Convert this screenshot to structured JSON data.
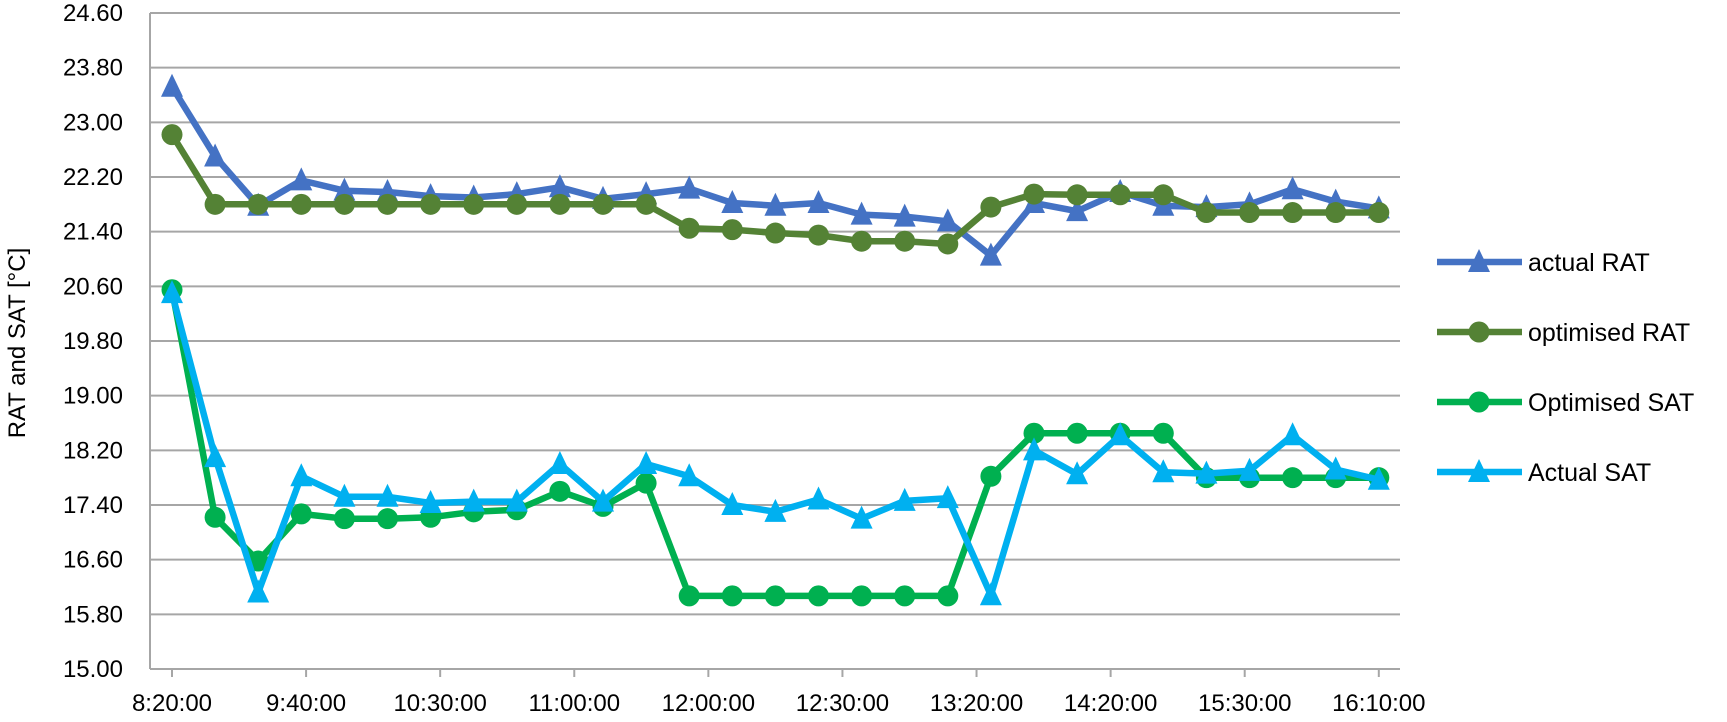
{
  "chart_data": {
    "type": "line",
    "ylabel": "RAT and SAT [°C]",
    "xlabel": "",
    "ylim": [
      15.0,
      24.6
    ],
    "ytick_step": 0.8,
    "yticks": [
      "15.00",
      "15.80",
      "16.60",
      "17.40",
      "18.20",
      "19.00",
      "19.80",
      "20.60",
      "21.40",
      "22.20",
      "23.00",
      "23.80",
      "24.60"
    ],
    "x_tick_labels": [
      "8:20:00",
      "9:40:00",
      "10:30:00",
      "11:00:00",
      "12:00:00",
      "12:30:00",
      "13:20:00",
      "14:20:00",
      "15:30:00",
      "16:10:00"
    ],
    "grid": "horizontal",
    "legend_position": "right",
    "point_count": 29,
    "series": [
      {
        "name": "actual RAT",
        "color": "#4472C4",
        "marker": "triangle",
        "values": [
          23.52,
          22.5,
          21.78,
          22.15,
          22.0,
          21.98,
          21.92,
          21.9,
          21.95,
          22.05,
          21.88,
          21.95,
          22.03,
          21.82,
          21.78,
          21.82,
          21.65,
          21.62,
          21.55,
          21.05,
          21.82,
          21.7,
          21.98,
          21.78,
          21.76,
          21.8,
          22.02,
          21.84,
          21.74
        ]
      },
      {
        "name": "optimised RAT",
        "color": "#548235",
        "marker": "circle",
        "values": [
          22.82,
          21.8,
          21.8,
          21.8,
          21.8,
          21.8,
          21.8,
          21.8,
          21.8,
          21.8,
          21.8,
          21.8,
          21.45,
          21.43,
          21.38,
          21.35,
          21.26,
          21.26,
          21.22,
          21.76,
          21.95,
          21.94,
          21.94,
          21.94,
          21.68,
          21.68,
          21.68,
          21.68,
          21.68
        ]
      },
      {
        "name": "Optimised SAT",
        "color": "#00B050",
        "marker": "circle",
        "values": [
          20.55,
          17.22,
          16.58,
          17.27,
          17.2,
          17.2,
          17.22,
          17.3,
          17.33,
          17.6,
          17.38,
          17.72,
          16.07,
          16.07,
          16.07,
          16.07,
          16.07,
          16.07,
          16.07,
          17.82,
          18.45,
          18.45,
          18.45,
          18.45,
          17.8,
          17.8,
          17.8,
          17.8,
          17.8
        ]
      },
      {
        "name": "Actual SAT",
        "color": "#00B0F0",
        "marker": "triangle",
        "values": [
          20.5,
          18.1,
          16.12,
          17.82,
          17.52,
          17.52,
          17.43,
          17.45,
          17.45,
          18.0,
          17.45,
          18.0,
          17.82,
          17.4,
          17.3,
          17.48,
          17.2,
          17.46,
          17.5,
          16.08,
          18.2,
          17.85,
          18.42,
          17.88,
          17.86,
          17.9,
          18.42,
          17.92,
          17.77
        ]
      }
    ]
  }
}
